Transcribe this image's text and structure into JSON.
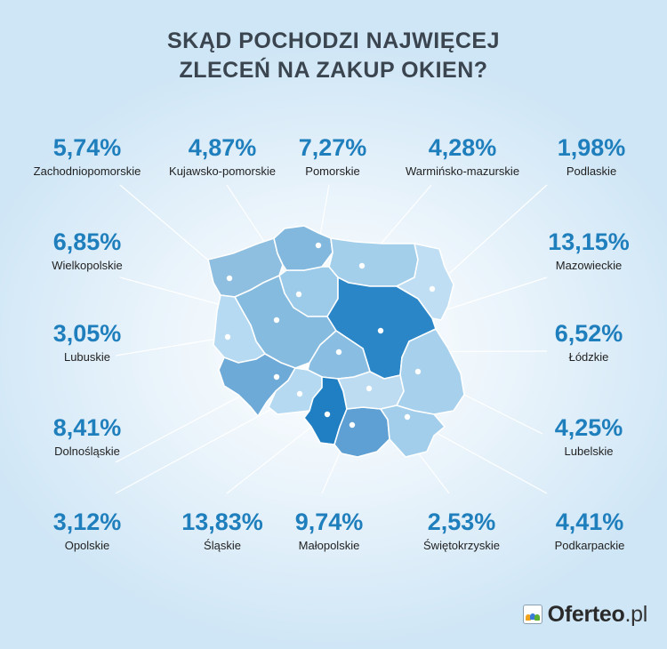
{
  "title_line1": "SKĄD POCHODZI NAJWIĘCEJ",
  "title_line2": "ZLECEŃ NA ZAKUP OKIEN?",
  "regions": [
    {
      "id": "zachodniopomorskie",
      "name": "Zachodniopomorskie",
      "pct": "5,74%",
      "color": "#8fbfe0"
    },
    {
      "id": "kujawsko",
      "name": "Kujawsko-pomorskie",
      "pct": "4,87%",
      "color": "#9ccbe9"
    },
    {
      "id": "pomorskie",
      "name": "Pomorskie",
      "pct": "7,27%",
      "color": "#82b8de"
    },
    {
      "id": "warminsko",
      "name": "Warmińsko-mazurskie",
      "pct": "4,28%",
      "color": "#a4cfeb"
    },
    {
      "id": "podlaskie",
      "name": "Podlaskie",
      "pct": "1,98%",
      "color": "#bfdef3"
    },
    {
      "id": "wielkopolskie",
      "name": "Wielkopolskie",
      "pct": "6,85%",
      "color": "#86bbe0"
    },
    {
      "id": "mazowieckie",
      "name": "Mazowieckie",
      "pct": "13,15%",
      "color": "#2a86c6"
    },
    {
      "id": "lubuskie",
      "name": "Lubuskie",
      "pct": "3,05%",
      "color": "#b6daf1"
    },
    {
      "id": "lodzkie",
      "name": "Łódzkie",
      "pct": "6,52%",
      "color": "#89bde1"
    },
    {
      "id": "dolnoslaskie",
      "name": "Dolnośląskie",
      "pct": "8,41%",
      "color": "#6eaad8"
    },
    {
      "id": "lubelskie",
      "name": "Lubelskie",
      "pct": "4,25%",
      "color": "#a6d0ec"
    },
    {
      "id": "opolskie",
      "name": "Opolskie",
      "pct": "3,12%",
      "color": "#b4d9f0"
    },
    {
      "id": "slaskie",
      "name": "Śląskie",
      "pct": "13,83%",
      "color": "#1f7fc2"
    },
    {
      "id": "malopolskie",
      "name": "Małopolskie",
      "pct": "9,74%",
      "color": "#5ea0d3"
    },
    {
      "id": "swietokrzyskie",
      "name": "Świętokrzyskie",
      "pct": "2,53%",
      "color": "#bddcf2"
    },
    {
      "id": "podkarpackie",
      "name": "Podkarpackie",
      "pct": "4,41%",
      "color": "#a2ceeb"
    }
  ],
  "brand": {
    "name": "Oferteo",
    "tld": ".pl"
  }
}
